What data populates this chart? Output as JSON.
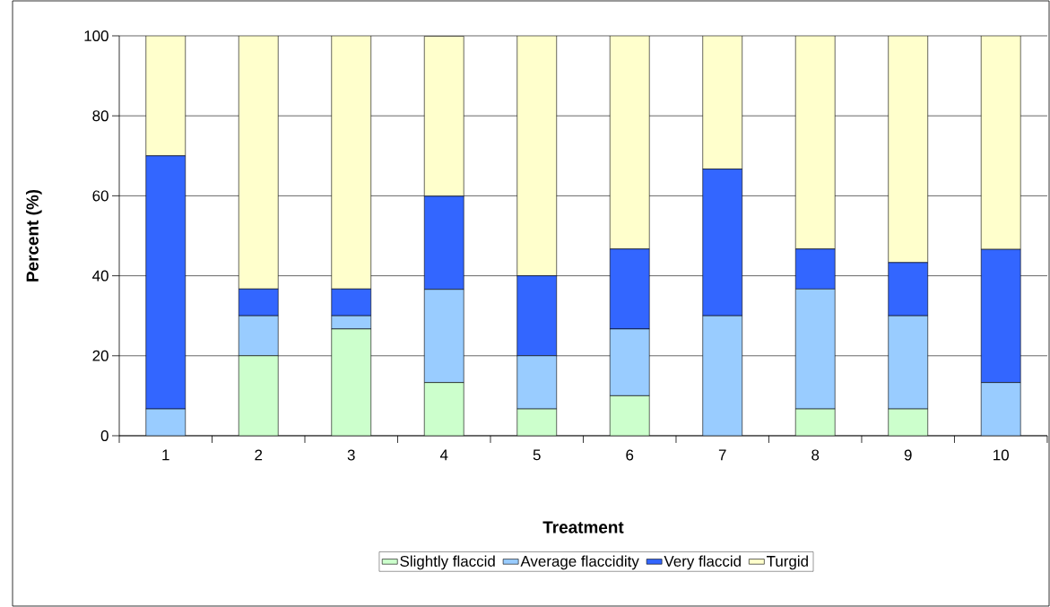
{
  "chart_data": {
    "type": "bar",
    "stacked": true,
    "xlabel": "Treatment",
    "ylabel": "Percent (%)",
    "categories": [
      "1",
      "2",
      "3",
      "4",
      "5",
      "6",
      "7",
      "8",
      "9",
      "10"
    ],
    "series": [
      {
        "name": "Slightly flaccid",
        "color": "#ccffcc",
        "values": [
          0,
          20,
          26.7,
          13.3,
          6.7,
          10,
          0,
          6.7,
          6.7,
          0
        ]
      },
      {
        "name": "Average flaccidity",
        "color": "#99ccff",
        "values": [
          6.7,
          10,
          3.3,
          23.3,
          13.3,
          16.7,
          30,
          30,
          23.3,
          13.3
        ]
      },
      {
        "name": "Very flaccid",
        "color": "#3366ff",
        "values": [
          63.3,
          6.7,
          6.7,
          23.3,
          20,
          20,
          36.7,
          10,
          13.3,
          33.3
        ]
      },
      {
        "name": "Turgid",
        "color": "#ffffcc",
        "values": [
          30,
          63.3,
          63.3,
          40,
          60,
          53.3,
          33.3,
          53.3,
          56.7,
          53.4
        ]
      }
    ],
    "ylim": [
      0,
      100
    ],
    "yticks": [
      0,
      20,
      40,
      60,
      80,
      100
    ],
    "grid": "y",
    "legend": "bottom"
  }
}
